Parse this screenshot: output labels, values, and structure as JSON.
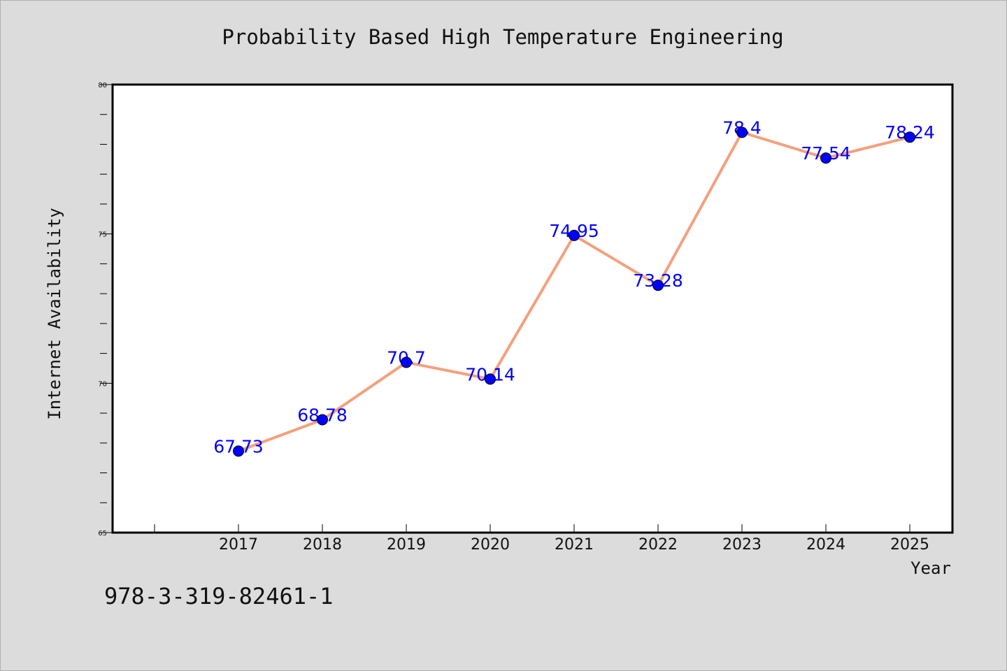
{
  "chart_data": {
    "type": "line",
    "title": "Probability Based High Temperature Engineering",
    "xlabel": "Year",
    "ylabel": "Internet Availability",
    "categories": [
      "2017",
      "2018",
      "2019",
      "2020",
      "2021",
      "2022",
      "2023",
      "2024",
      "2025"
    ],
    "series": [
      {
        "values": [
          67.73,
          68.78,
          70.7,
          70.14,
          74.95,
          73.28,
          78.4,
          77.54,
          78.24
        ]
      }
    ],
    "data_labels": [
      "67.73",
      "68.78",
      "70.7",
      "70.14",
      "74.95",
      "73.28",
      "78.4",
      "77.54",
      "78.24"
    ],
    "ylim": [
      65,
      80
    ],
    "yticks": [
      "65",
      "70",
      "75",
      "80"
    ],
    "grid": false,
    "legend": "none",
    "colors": {
      "line": "#f4a07e",
      "marker": "#0000ff",
      "label": "#0000ff",
      "background": "#dcdcdc",
      "plot_background": "#ffffff"
    }
  },
  "annotation": "978-3-319-82461-1"
}
